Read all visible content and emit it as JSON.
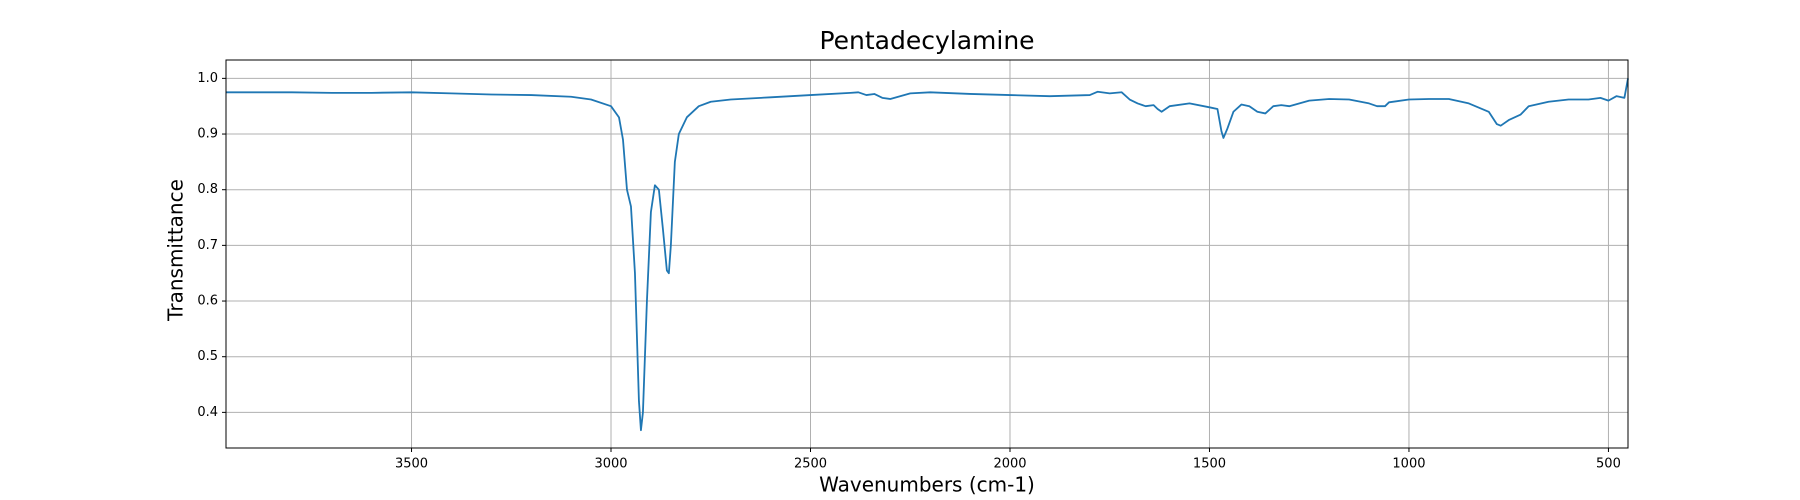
{
  "chart_data": {
    "type": "line",
    "title": "Pentadecylamine",
    "x_label": "Wavenumbers (cm-1)",
    "y_label": "Transmittance",
    "x": [
      3965,
      3900,
      3800,
      3700,
      3600,
      3500,
      3400,
      3300,
      3200,
      3100,
      3050,
      3000,
      2980,
      2970,
      2960,
      2950,
      2940,
      2930,
      2925,
      2920,
      2910,
      2900,
      2890,
      2880,
      2870,
      2860,
      2855,
      2850,
      2840,
      2830,
      2810,
      2780,
      2750,
      2700,
      2600,
      2500,
      2400,
      2380,
      2360,
      2340,
      2320,
      2300,
      2250,
      2200,
      2100,
      2000,
      1900,
      1800,
      1780,
      1750,
      1720,
      1700,
      1680,
      1660,
      1640,
      1630,
      1620,
      1600,
      1550,
      1500,
      1480,
      1470,
      1465,
      1455,
      1440,
      1420,
      1400,
      1380,
      1360,
      1340,
      1320,
      1300,
      1250,
      1200,
      1150,
      1100,
      1080,
      1060,
      1050,
      1000,
      950,
      900,
      850,
      800,
      780,
      770,
      750,
      720,
      700,
      650,
      600,
      550,
      520,
      500,
      480,
      460,
      451
    ],
    "values": [
      0.975,
      0.975,
      0.975,
      0.974,
      0.974,
      0.975,
      0.973,
      0.971,
      0.97,
      0.967,
      0.962,
      0.95,
      0.93,
      0.89,
      0.8,
      0.77,
      0.65,
      0.42,
      0.368,
      0.4,
      0.6,
      0.76,
      0.808,
      0.8,
      0.73,
      0.655,
      0.65,
      0.7,
      0.85,
      0.9,
      0.93,
      0.95,
      0.958,
      0.962,
      0.966,
      0.97,
      0.974,
      0.975,
      0.97,
      0.972,
      0.965,
      0.963,
      0.973,
      0.975,
      0.972,
      0.97,
      0.968,
      0.97,
      0.976,
      0.973,
      0.975,
      0.962,
      0.955,
      0.95,
      0.952,
      0.945,
      0.94,
      0.95,
      0.955,
      0.948,
      0.945,
      0.905,
      0.893,
      0.91,
      0.94,
      0.953,
      0.95,
      0.94,
      0.937,
      0.95,
      0.952,
      0.95,
      0.96,
      0.963,
      0.962,
      0.955,
      0.95,
      0.95,
      0.957,
      0.962,
      0.963,
      0.963,
      0.955,
      0.94,
      0.918,
      0.915,
      0.925,
      0.935,
      0.95,
      0.958,
      0.962,
      0.962,
      0.965,
      0.96,
      0.968,
      0.965,
      1.0
    ],
    "color": "#1f77b4",
    "xlim": [
      3965,
      451
    ],
    "xticks": [
      3500,
      3000,
      2500,
      2000,
      1500,
      1000,
      500
    ],
    "ylim": [
      0.336,
      1.033
    ],
    "yticks": [
      0.4,
      0.5,
      0.6,
      0.7,
      0.8,
      0.9,
      {
        "value": 1,
        "label": "1.0"
      }
    ],
    "grid": true
  }
}
